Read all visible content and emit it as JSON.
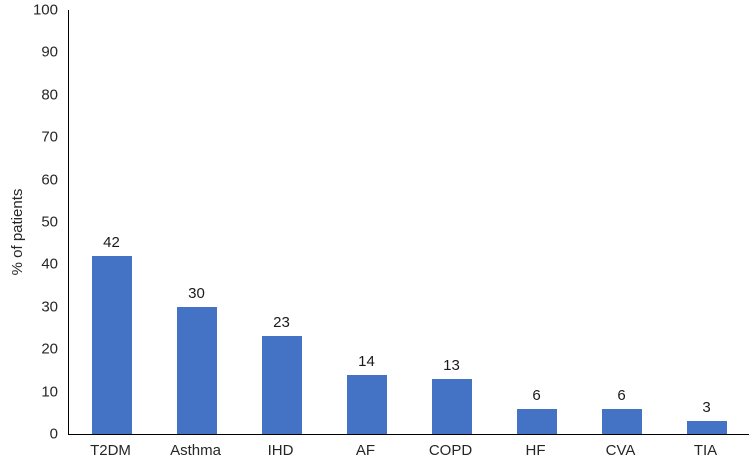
{
  "chart_data": {
    "type": "bar",
    "categories": [
      "T2DM",
      "Asthma",
      "IHD",
      "AF",
      "COPD",
      "HF",
      "CVA",
      "TIA"
    ],
    "values": [
      42,
      30,
      23,
      14,
      13,
      6,
      6,
      3
    ],
    "title": "",
    "xlabel": "",
    "ylabel": "% of patients",
    "ylim": [
      0,
      100
    ],
    "ytick_step": 10,
    "ytick_labels": [
      "0",
      "10",
      "20",
      "30",
      "40",
      "50",
      "60",
      "70",
      "80",
      "90",
      "100"
    ],
    "show_data_labels": true,
    "grid": false,
    "legend": false,
    "bar_color": "#4472C4",
    "axis_color": "#000000",
    "text_color": "#262626"
  }
}
